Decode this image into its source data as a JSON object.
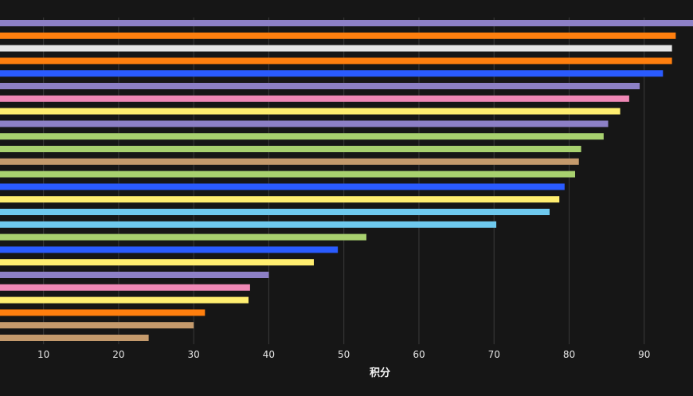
{
  "chart_data": {
    "type": "bar",
    "orientation": "horizontal",
    "xlabel": "积分",
    "ylabel": "",
    "xlim": [
      4.2,
      96.5
    ],
    "xticks": [
      10,
      20,
      30,
      40,
      50,
      60,
      70,
      80,
      90
    ],
    "tick_labels": [
      "10",
      "20",
      "30",
      "40",
      "50",
      "60",
      "70",
      "80",
      "90"
    ],
    "grid": true,
    "values": [
      96.5,
      94.2,
      93.7,
      93.7,
      92.5,
      89.4,
      88.0,
      86.8,
      85.2,
      84.6,
      81.6,
      81.3,
      80.8,
      79.4,
      78.7,
      77.4,
      70.3,
      53.0,
      49.2,
      46.0,
      40.0,
      37.5,
      37.3,
      31.5,
      30.0,
      24.0
    ],
    "colors": [
      "#8d80c6",
      "#ff7f0e",
      "#e6e6e6",
      "#ff7f0e",
      "#2a5bff",
      "#8d80c6",
      "#f088b6",
      "#ffee70",
      "#8d80c6",
      "#a8d16f",
      "#a8d16f",
      "#c49a6c",
      "#a8d16f",
      "#2a5bff",
      "#ffee70",
      "#6ec9ee",
      "#6ec9ee",
      "#a8d16f",
      "#2a5bff",
      "#ffee70",
      "#8d80c6",
      "#f088b6",
      "#ffee70",
      "#ff7f0e",
      "#c49a6c",
      "#c49a6c"
    ]
  }
}
